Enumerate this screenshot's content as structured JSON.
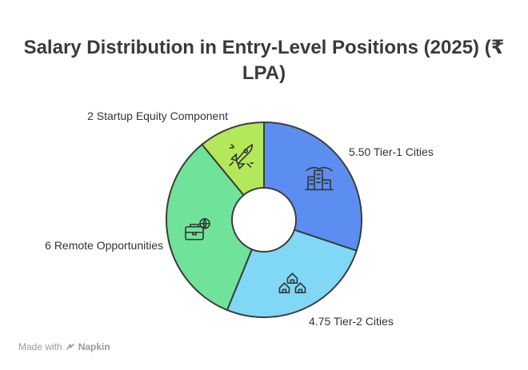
{
  "title_line1": "Salary Distribution in Entry-Level Positions (2025) (₹",
  "title_line2": "LPA)",
  "footer": {
    "made_with": "Made with",
    "brand": "Napkin"
  },
  "chart_data": {
    "type": "pie",
    "title": "Salary Distribution in Entry-Level Positions (2025) (₹ LPA)",
    "slices": [
      {
        "label": "5.50 Tier-1 Cities",
        "value": 5.5,
        "color": "#5b8ef0",
        "icon": "city-buildings-icon"
      },
      {
        "label": "4.75 Tier-2 Cities",
        "value": 4.75,
        "color": "#80d8f5",
        "icon": "houses-icon"
      },
      {
        "label": "6 Remote Opportunities",
        "value": 6,
        "color": "#6fe39a",
        "icon": "briefcase-globe-icon"
      },
      {
        "label": "2 Startup Equity Component",
        "value": 2,
        "color": "#b3e85a",
        "icon": "rocket-icon"
      }
    ]
  }
}
